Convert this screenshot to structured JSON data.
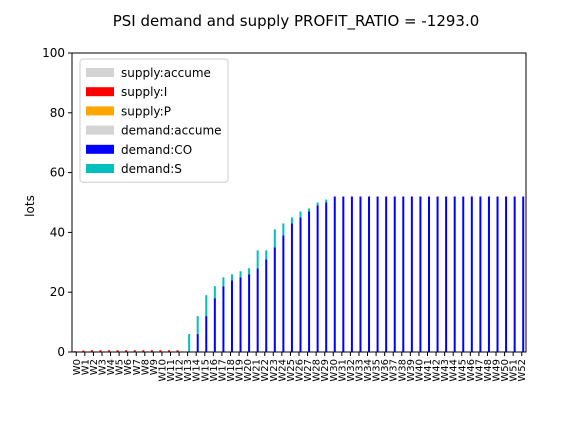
{
  "chart_data": {
    "type": "bar",
    "stacked": true,
    "title": "PSI demand and supply PROFIT_RATIO = -1293.0",
    "xlabel": "",
    "ylabel": "lots",
    "ylim": [
      0,
      100
    ],
    "yticks": [
      0,
      20,
      40,
      60,
      80,
      100
    ],
    "grid": false,
    "legend_position": "top-left",
    "categories": [
      "W0",
      "W1",
      "W2",
      "W3",
      "W4",
      "W5",
      "W6",
      "W7",
      "W8",
      "W9",
      "W10",
      "W11",
      "W12",
      "W13",
      "W14",
      "W15",
      "W16",
      "W17",
      "W18",
      "W19",
      "W20",
      "W21",
      "W22",
      "W23",
      "W24",
      "W25",
      "W26",
      "W27",
      "W28",
      "W29",
      "W30",
      "W31",
      "W32",
      "W33",
      "W34",
      "W35",
      "W36",
      "W37",
      "W38",
      "W39",
      "W40",
      "W41",
      "W42",
      "W43",
      "W44",
      "W45",
      "W46",
      "W47",
      "W48",
      "W49",
      "W50",
      "W51",
      "W52"
    ],
    "legend": [
      {
        "label": "supply:accume",
        "color": "#d3d3d3"
      },
      {
        "label": "supply:I",
        "color": "#ff0000"
      },
      {
        "label": "supply:P",
        "color": "#ffa500"
      },
      {
        "label": "demand:accume",
        "color": "#d3d3d3"
      },
      {
        "label": "demand:CO",
        "color": "#0000ff"
      },
      {
        "label": "demand:S",
        "color": "#00bfbf"
      }
    ],
    "series": [
      {
        "name": "supply:I",
        "color": "#ff0000",
        "group": "supply",
        "values": [
          0.3,
          0.5,
          0.6,
          0.6,
          0.6,
          0.6,
          0.6,
          0.6,
          0.6,
          0.6,
          0.6,
          0.6,
          0.6,
          0,
          0,
          0,
          0,
          0,
          0,
          0,
          0,
          0,
          0,
          0,
          0,
          0,
          0,
          0,
          0,
          0,
          0,
          0,
          0,
          0,
          0,
          0,
          0,
          0,
          0,
          0,
          0,
          0,
          0,
          0,
          0,
          0,
          0,
          0,
          0,
          0,
          0,
          0,
          0
        ]
      },
      {
        "name": "demand:CO",
        "color": "#0000ff",
        "group": "demand",
        "values": [
          0,
          0,
          0,
          0,
          0,
          0,
          0,
          0,
          0,
          0,
          0,
          0,
          0,
          0,
          6,
          12,
          18,
          22,
          24,
          25,
          26,
          28,
          31,
          35,
          39,
          43,
          45,
          47,
          49,
          50,
          52,
          52,
          52,
          52,
          52,
          52,
          52,
          52,
          52,
          52,
          52,
          52,
          52,
          52,
          52,
          52,
          52,
          52,
          52,
          52,
          52,
          52,
          52
        ]
      },
      {
        "name": "demand:S",
        "color": "#00bfbf",
        "group": "demand",
        "values": [
          0,
          0,
          0,
          0,
          0,
          0,
          0,
          0,
          0,
          0,
          0,
          0,
          0,
          6,
          6,
          7,
          4,
          3,
          2,
          2,
          2,
          6,
          3,
          6,
          4,
          2,
          2,
          1,
          1,
          1,
          0,
          0,
          0,
          0,
          0,
          0,
          0,
          0,
          0,
          0,
          0,
          0,
          0,
          0,
          0,
          0,
          0,
          0,
          0,
          0,
          0,
          0,
          0
        ]
      }
    ]
  }
}
